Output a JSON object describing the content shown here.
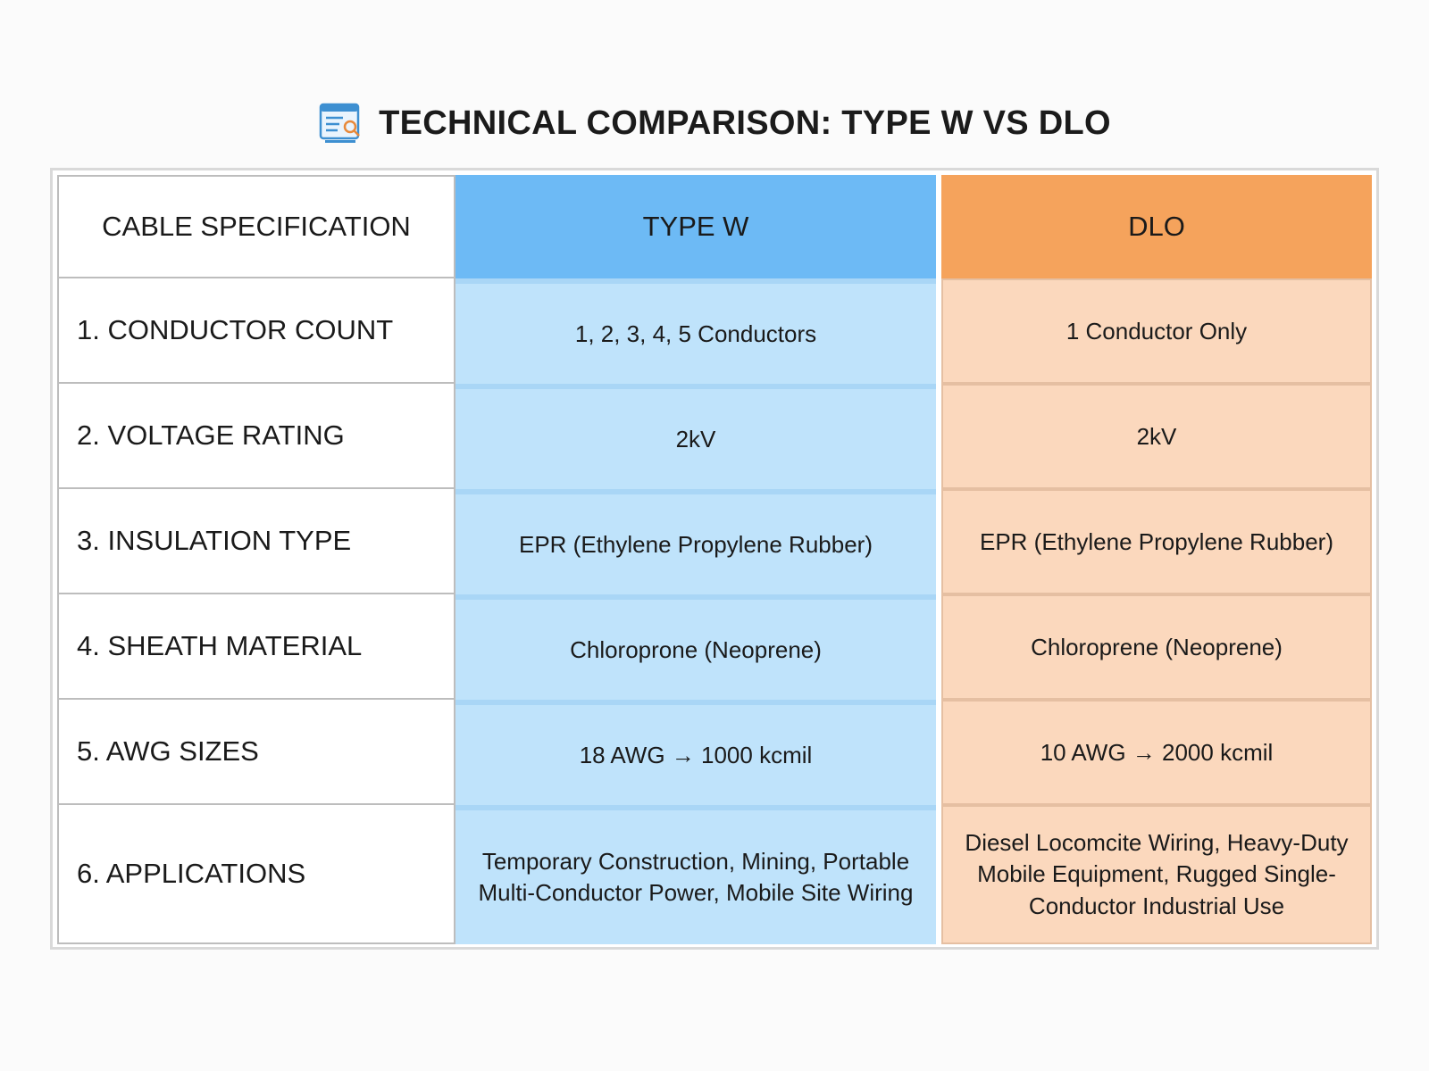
{
  "title": "TECHNICAL COMPARISON: TYPE W VS DLO",
  "icon": "spec-sheet-icon",
  "colors": {
    "type_w_header": "#6dbaf5",
    "type_w_body": "#bfe3fb",
    "dlo_header": "#f5a35c",
    "dlo_body": "#fbd8bd"
  },
  "table": {
    "headers": {
      "spec": "CABLE SPECIFICATION",
      "type_w": "TYPE W",
      "dlo": "DLO"
    },
    "rows": [
      {
        "spec": "1. CONDUCTOR COUNT",
        "type_w": "1, 2, 3, 4, 5 Conductors",
        "dlo": "1 Conductor Only"
      },
      {
        "spec": "2. VOLTAGE RATING",
        "type_w": "2kV",
        "dlo": "2kV"
      },
      {
        "spec": "3. INSULATION TYPE",
        "type_w": "EPR (Ethylene Propylene Rubber)",
        "dlo": "EPR (Ethylene Propylene Rubber)"
      },
      {
        "spec": "4. SHEATH MATERIAL",
        "type_w": "Chloroprone (Neoprene)",
        "dlo": "Chloroprene (Neoprene)"
      },
      {
        "spec": "5. AWG SIZES",
        "type_w": "18 AWG → 1000 kcmil",
        "dlo": "10 AWG → 2000 kcmil"
      },
      {
        "spec": "6. APPLICATIONS",
        "type_w": "Temporary Construction, Mining, Portable Multi-Conductor Power, Mobile Site Wiring",
        "dlo": "Diesel Locomcite Wiring, Heavy-Duty Mobile Equipment, Rugged Single-Conductor Industrial Use"
      }
    ]
  }
}
